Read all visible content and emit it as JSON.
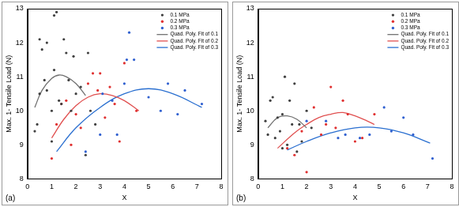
{
  "chart_data": [
    {
      "type": "scatter",
      "x_label": "X",
      "y_label": "Max. 1- Tensile Load (N)",
      "annotations": [
        "(a)"
      ],
      "xlim": [
        0,
        8
      ],
      "xticks": [
        0,
        1,
        2,
        3,
        4,
        5,
        6,
        7,
        8
      ],
      "ylim": [
        8,
        13
      ],
      "yticks": [
        8,
        9,
        10,
        11,
        12,
        13
      ],
      "grid": false,
      "legend": "upper right",
      "series": [
        {
          "name": "0.1 MPa",
          "type": "scatter",
          "marker": "circle",
          "color": "#404040",
          "x": [
            0.3,
            0.4,
            0.5,
            0.5,
            0.6,
            0.7,
            0.8,
            0.8,
            1.0,
            1.0,
            1.1,
            1.1,
            1.2,
            1.3,
            1.4,
            1.5,
            1.6,
            1.7,
            1.8,
            1.9,
            2.0,
            2.2,
            2.4,
            2.5,
            2.6,
            2.8
          ],
          "values": [
            9.4,
            9.6,
            10.5,
            12.1,
            11.8,
            10.9,
            12.0,
            10.6,
            10.0,
            9.1,
            11.2,
            12.8,
            12.9,
            10.3,
            10.2,
            12.1,
            11.7,
            10.9,
            10.0,
            11.6,
            10.5,
            10.7,
            8.7,
            11.7,
            10.0,
            9.6
          ]
        },
        {
          "name": "0.2 MPa",
          "type": "scatter",
          "marker": "circle",
          "color": "#e03030",
          "x": [
            1.0,
            1.2,
            1.4,
            1.6,
            1.8,
            2.0,
            2.2,
            2.5,
            2.7,
            2.9,
            3.0,
            3.2,
            3.4,
            3.6,
            3.8,
            4.0,
            4.5
          ],
          "values": [
            8.6,
            9.6,
            10.2,
            10.3,
            9.0,
            9.9,
            9.5,
            10.8,
            11.1,
            10.6,
            11.1,
            9.8,
            10.7,
            10.2,
            9.1,
            11.4,
            10.0
          ]
        },
        {
          "name": "0.3 MPa",
          "type": "scatter",
          "marker": "circle",
          "color": "#3060d0",
          "x": [
            2.4,
            3.0,
            3.1,
            3.5,
            3.7,
            4.0,
            4.1,
            4.2,
            4.4,
            5.0,
            5.5,
            5.8,
            6.2,
            6.5,
            7.2
          ],
          "values": [
            8.8,
            9.3,
            10.5,
            10.3,
            9.3,
            10.8,
            11.5,
            12.3,
            11.5,
            10.4,
            10.0,
            10.8,
            9.9,
            10.6,
            10.2
          ]
        },
        {
          "name": "Quad. Poly. Fit of 0.1",
          "type": "line",
          "line_style": "solid",
          "color": "#707070",
          "x": [
            0.3,
            0.6,
            1.0,
            1.3,
            1.6,
            2.0,
            2.4
          ],
          "values": [
            10.1,
            10.6,
            10.95,
            11.05,
            11.0,
            10.8,
            10.45
          ]
        },
        {
          "name": "Quad. Poly. Fit of 0.2",
          "type": "line",
          "line_style": "solid",
          "color": "#e05050",
          "x": [
            1.0,
            1.5,
            2.0,
            2.5,
            3.0,
            3.5,
            4.0,
            4.6
          ],
          "values": [
            9.2,
            9.75,
            10.15,
            10.4,
            10.5,
            10.45,
            10.3,
            10.0
          ]
        },
        {
          "name": "Quad. Poly. Fit of 0.3",
          "type": "line",
          "line_style": "solid",
          "color": "#2a6fd0",
          "x": [
            1.2,
            2.0,
            3.0,
            4.0,
            5.0,
            6.0,
            7.2
          ],
          "values": [
            8.8,
            9.5,
            10.1,
            10.5,
            10.65,
            10.5,
            10.1
          ]
        }
      ]
    },
    {
      "type": "scatter",
      "x_label": "X",
      "y_label": "Max. 1- Tensile Load (N)",
      "annotations": [
        "(b)"
      ],
      "xlim": [
        0,
        8
      ],
      "xticks": [
        0,
        1,
        2,
        3,
        4,
        5,
        6,
        7,
        8
      ],
      "ylim": [
        8,
        13
      ],
      "yticks": [
        8,
        9,
        10,
        11,
        12,
        13
      ],
      "grid": false,
      "legend": "upper right",
      "series": [
        {
          "name": "0.1 MPa",
          "type": "scatter",
          "marker": "circle",
          "color": "#404040",
          "x": [
            0.3,
            0.4,
            0.5,
            0.6,
            0.7,
            0.8,
            0.9,
            1.0,
            1.0,
            1.1,
            1.2,
            1.3,
            1.4,
            1.5,
            1.6,
            1.7,
            1.8,
            2.0,
            2.2
          ],
          "values": [
            9.7,
            9.3,
            10.3,
            10.4,
            9.2,
            9.8,
            9.4,
            9.9,
            8.9,
            11.0,
            9.0,
            10.3,
            9.6,
            10.8,
            8.8,
            9.6,
            9.1,
            10.0,
            9.5
          ]
        },
        {
          "name": "0.2 MPa",
          "type": "scatter",
          "marker": "circle",
          "color": "#e03030",
          "x": [
            1.2,
            1.5,
            1.8,
            2.0,
            2.3,
            2.6,
            2.8,
            3.0,
            3.2,
            3.5,
            3.7,
            4.0,
            4.3,
            4.8
          ],
          "values": [
            8.9,
            8.7,
            9.4,
            8.2,
            10.1,
            9.3,
            9.6,
            10.7,
            9.5,
            10.3,
            9.9,
            9.1,
            9.2,
            9.9
          ]
        },
        {
          "name": "0.3 MPa",
          "type": "scatter",
          "marker": "circle",
          "color": "#3060d0",
          "x": [
            2.0,
            2.8,
            3.3,
            3.6,
            4.2,
            4.6,
            5.2,
            5.5,
            6.0,
            6.4,
            7.2
          ],
          "values": [
            9.7,
            9.7,
            9.2,
            9.3,
            9.2,
            9.3,
            10.1,
            9.4,
            9.8,
            9.3,
            8.6
          ]
        },
        {
          "name": "Quad. Poly. Fit of 0.1",
          "type": "line",
          "line_style": "solid",
          "color": "#707070",
          "x": [
            0.4,
            0.8,
            1.2,
            1.6,
            2.0
          ],
          "values": [
            9.5,
            9.8,
            9.85,
            9.75,
            9.5
          ]
        },
        {
          "name": "Quad. Poly. Fit of 0.2",
          "type": "line",
          "line_style": "solid",
          "color": "#e05050",
          "x": [
            0.8,
            1.5,
            2.0,
            2.5,
            3.0,
            3.5,
            4.0,
            4.5,
            4.8
          ],
          "values": [
            8.9,
            9.35,
            9.6,
            9.8,
            9.9,
            9.95,
            9.85,
            9.7,
            9.6
          ]
        },
        {
          "name": "Quad. Poly. Fit of 0.3",
          "type": "line",
          "line_style": "solid",
          "color": "#2a6fd0",
          "x": [
            1.2,
            2.0,
            3.0,
            4.0,
            5.0,
            6.0,
            7.1
          ],
          "values": [
            8.85,
            9.1,
            9.35,
            9.5,
            9.5,
            9.35,
            9.05
          ]
        }
      ]
    }
  ]
}
